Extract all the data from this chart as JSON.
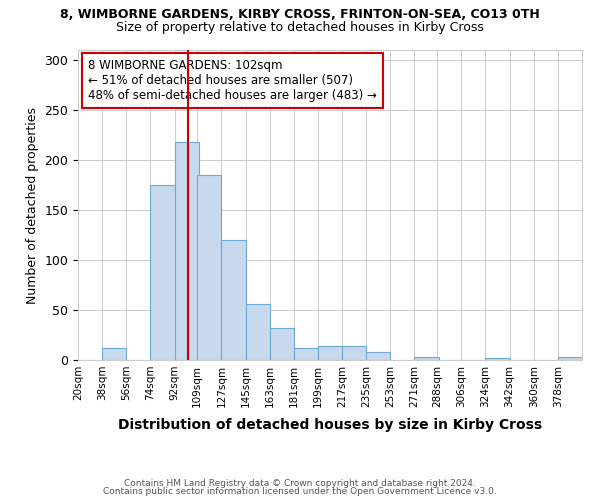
{
  "title_line1": "8, WIMBORNE GARDENS, KIRBY CROSS, FRINTON-ON-SEA, CO13 0TH",
  "title_line2": "Size of property relative to detached houses in Kirby Cross",
  "xlabel": "Distribution of detached houses by size in Kirby Cross",
  "ylabel": "Number of detached properties",
  "bins": [
    20,
    38,
    56,
    74,
    92,
    109,
    127,
    145,
    163,
    181,
    199,
    217,
    235,
    253,
    271,
    288,
    306,
    324,
    342,
    360,
    378
  ],
  "counts": [
    0,
    12,
    0,
    175,
    218,
    185,
    120,
    56,
    32,
    12,
    14,
    14,
    8,
    0,
    3,
    0,
    0,
    2,
    0,
    0,
    3
  ],
  "bin_labels": [
    "20sqm",
    "38sqm",
    "56sqm",
    "74sqm",
    "92sqm",
    "109sqm",
    "127sqm",
    "145sqm",
    "163sqm",
    "181sqm",
    "199sqm",
    "217sqm",
    "235sqm",
    "253sqm",
    "271sqm",
    "288sqm",
    "306sqm",
    "324sqm",
    "342sqm",
    "360sqm",
    "378sqm"
  ],
  "bar_color": "#c8d9ed",
  "bar_edge_color": "#6aaad4",
  "ref_line_x": 102,
  "ref_line_color": "#cc0000",
  "annotation_text": "8 WIMBORNE GARDENS: 102sqm\n← 51% of detached houses are smaller (507)\n48% of semi-detached houses are larger (483) →",
  "annotation_box_color": "#ffffff",
  "annotation_box_edge": "#cc0000",
  "ylim": [
    0,
    310
  ],
  "yticks": [
    0,
    50,
    100,
    150,
    200,
    250,
    300
  ],
  "footer_line1": "Contains HM Land Registry data © Crown copyright and database right 2024.",
  "footer_line2": "Contains public sector information licensed under the Open Government Licence v3.0.",
  "background_color": "#ffffff",
  "grid_color": "#cccccc"
}
